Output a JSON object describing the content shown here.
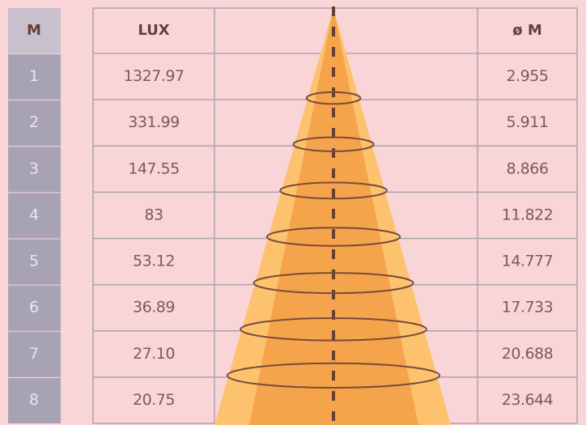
{
  "table": {
    "header": [
      "M",
      "LUX",
      "ø M"
    ],
    "rows": [
      [
        "1",
        "1327.97",
        "2.955"
      ],
      [
        "2",
        "331.99",
        "5.911"
      ],
      [
        "3",
        "147.55",
        "8.866"
      ],
      [
        "4",
        "83",
        "11.822"
      ],
      [
        "5",
        "53.12",
        "14.777"
      ],
      [
        "6",
        "36.89",
        "17.733"
      ],
      [
        "7",
        "27.10",
        "20.688"
      ],
      [
        "8",
        "20.75",
        "23.644"
      ]
    ]
  }
}
